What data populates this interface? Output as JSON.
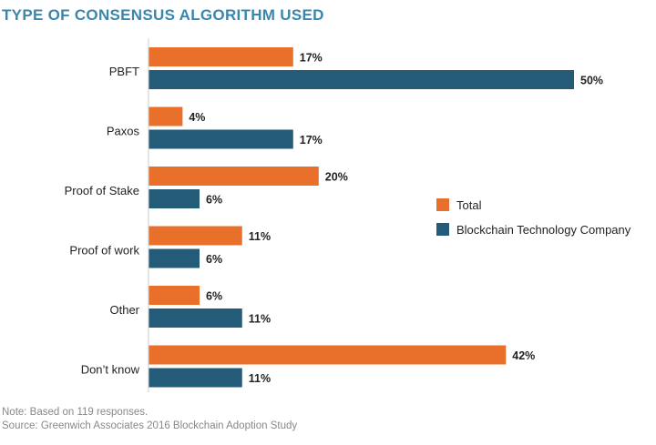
{
  "chart_data": {
    "type": "bar",
    "orientation": "horizontal",
    "title": "TYPE OF CONSENSUS ALGORITHM USED",
    "categories": [
      "PBFT",
      "Paxos",
      "Proof of Stake",
      "Proof of work",
      "Other",
      "Don’t know"
    ],
    "series": [
      {
        "name": "Total",
        "color": "#e8702a",
        "values": [
          17,
          4,
          20,
          11,
          6,
          42
        ],
        "labels": [
          "17%",
          "4%",
          "20%",
          "11%",
          "6%",
          "42%"
        ]
      },
      {
        "name": "Blockchain Technology Company",
        "color": "#245b78",
        "values": [
          50,
          17,
          6,
          6,
          11,
          11
        ],
        "labels": [
          "50%",
          "17%",
          "6%",
          "6%",
          "11%",
          "11%"
        ]
      }
    ],
    "xlim": [
      0,
      50
    ],
    "legend_position": "right",
    "grid": false
  },
  "footnotes": {
    "note": "Note: Based on 119 responses.",
    "source": "Source: Greenwich Associates 2016 Blockchain Adoption Study"
  }
}
